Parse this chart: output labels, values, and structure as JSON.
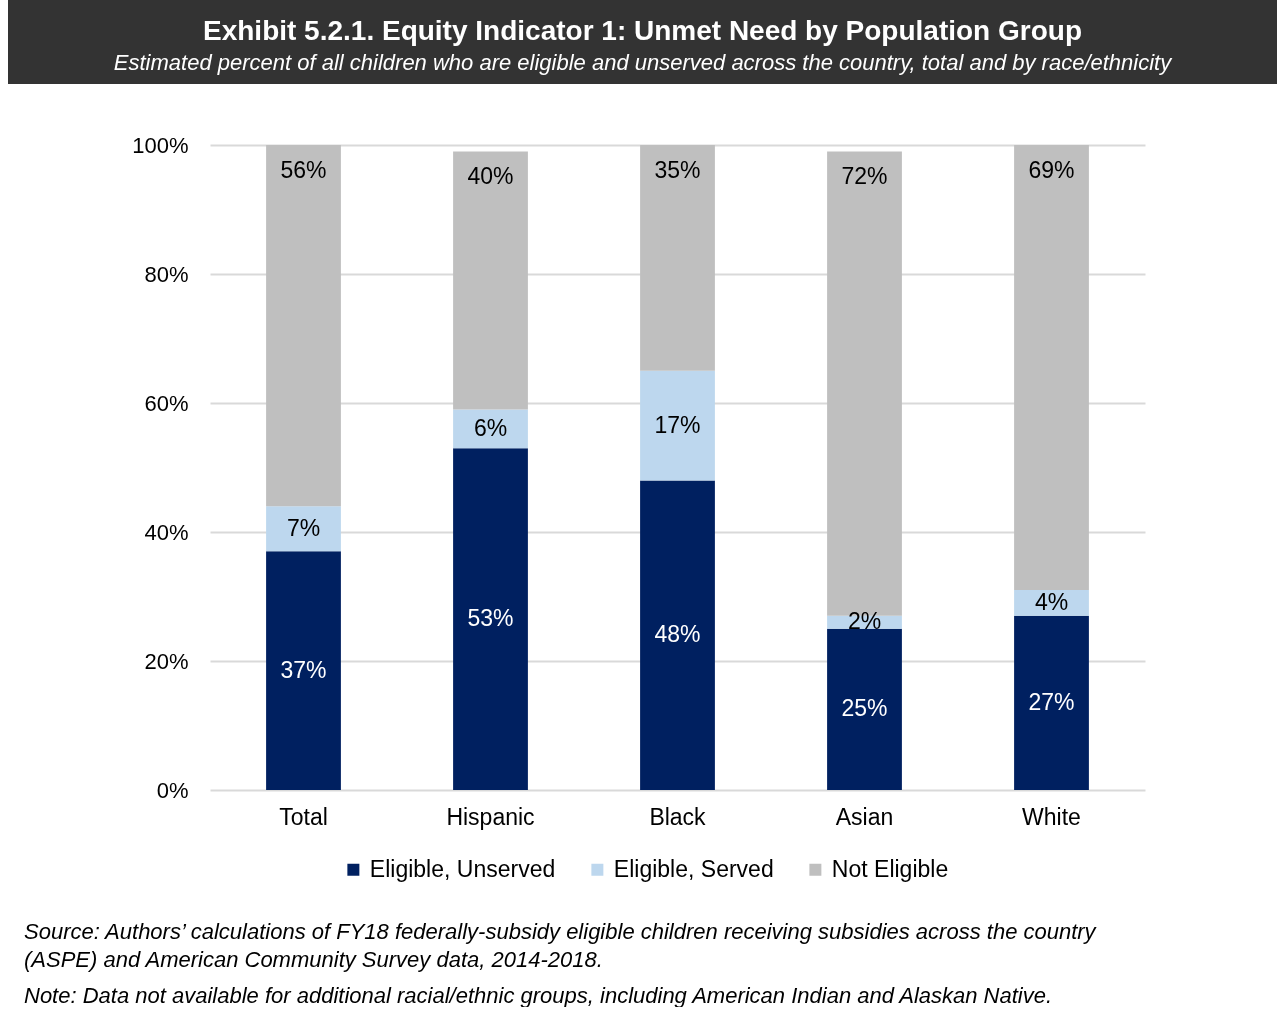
{
  "chart_data": {
    "type": "bar",
    "stacked": true,
    "title": "Exhibit 5.2.1. Equity Indicator 1:  Unmet Need by Population Group",
    "subtitle": "Estimated percent of all children who are eligible and unserved across the country, total and by race/ethnicity",
    "categories": [
      "Total",
      "Hispanic",
      "Black",
      "Asian",
      "White"
    ],
    "series": [
      {
        "name": "Eligible, Unserved",
        "color": "#002060",
        "values": [
          37,
          53,
          48,
          25,
          27
        ],
        "value_labels": [
          "37%",
          "53%",
          "48%",
          "25%",
          "27%"
        ]
      },
      {
        "name": "Eligible, Served",
        "color": "#bdd7ee",
        "values": [
          7,
          6,
          17,
          2,
          4
        ],
        "value_labels": [
          "7%",
          "6%",
          "17%",
          "2%",
          "4%"
        ]
      },
      {
        "name": "Not Eligible",
        "color": "#bfbfbf",
        "values": [
          56,
          40,
          35,
          72,
          69
        ],
        "value_labels": [
          "56%",
          "40%",
          "35%",
          "72%",
          "69%"
        ]
      }
    ],
    "ylim": [
      0,
      100
    ],
    "yticks": [
      {
        "value": 0,
        "label": "0%"
      },
      {
        "value": 20,
        "label": "20%"
      },
      {
        "value": 40,
        "label": "40%"
      },
      {
        "value": 60,
        "label": "60%"
      },
      {
        "value": 80,
        "label": "80%"
      },
      {
        "value": 100,
        "label": "100%"
      }
    ],
    "grid": "y",
    "legend": "bottom",
    "annotations": [
      "Source: Authors’ calculations of FY18 federally-subsidy eligible children receiving subsidies across the country (ASPE) and American Community Survey data, 2014-2018.",
      "Note: Data not available for additional racial/ethnic groups, including American Indian and Alaskan Native."
    ]
  }
}
